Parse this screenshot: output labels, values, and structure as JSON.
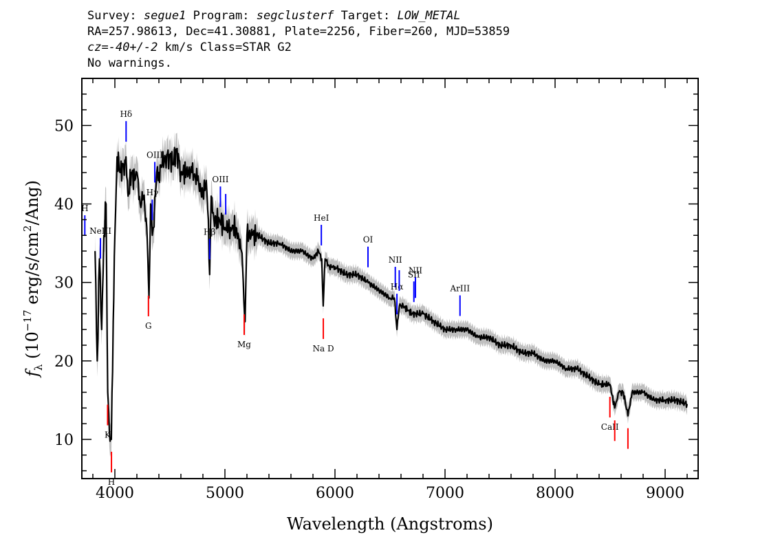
{
  "header": {
    "survey_label": "Survey:",
    "survey_value": "segue1",
    "program_label": "Program:",
    "program_value": "segclusterf",
    "target_label": "Target:",
    "target_value": "LOW_METAL",
    "line2": "RA=257.98613, Dec=41.30881, Plate=2256, Fiber=260, MJD=53859",
    "cz_label": "cz",
    "cz_value": "=-40+/-2",
    "cz_suffix": " km/s Class=STAR G2",
    "line4": "No warnings."
  },
  "chart_data": {
    "type": "line",
    "xlabel": "Wavelength (Angstroms)",
    "ylabel": "f_λ (10^-17 erg/s/cm^2/Ang)",
    "ylabel_parts": {
      "f": "f",
      "lambda": "λ",
      "open": " (10",
      "exp1": "−17",
      "mid": " erg/s/cm",
      "exp2": "2",
      "close": "/Ang)"
    },
    "xlim": [
      3700,
      9300
    ],
    "ylim": [
      5,
      56
    ],
    "xticks": [
      4000,
      5000,
      6000,
      7000,
      8000,
      9000
    ],
    "yticks": [
      10,
      20,
      30,
      40,
      50
    ],
    "colors": {
      "flux": "#000000",
      "error": "#bfbfbf",
      "emission": "#0000ff",
      "absorption": "#ff0000"
    },
    "series": [
      {
        "role": "flux",
        "x": [
          3820,
          3840,
          3860,
          3880,
          3900,
          3920,
          3935,
          3950,
          3968,
          3985,
          4000,
          4020,
          4050,
          4080,
          4101,
          4120,
          4150,
          4180,
          4200,
          4230,
          4260,
          4290,
          4300,
          4310,
          4325,
          4340,
          4350,
          4380,
          4400,
          4430,
          4460,
          4500,
          4530,
          4560,
          4600,
          4650,
          4700,
          4750,
          4800,
          4830,
          4850,
          4861,
          4875,
          4900,
          4950,
          5000,
          5050,
          5100,
          5150,
          5167,
          5183,
          5200,
          5250,
          5300,
          5400,
          5500,
          5600,
          5700,
          5800,
          5850,
          5880,
          5893,
          5910,
          5950,
          6000,
          6100,
          6200,
          6300,
          6400,
          6500,
          6540,
          6563,
          6585,
          6620,
          6700,
          6800,
          6900,
          7000,
          7100,
          7200,
          7300,
          7400,
          7500,
          7600,
          7700,
          7800,
          7900,
          8000,
          8100,
          8200,
          8300,
          8400,
          8498,
          8542,
          8580,
          8620,
          8662,
          8700,
          8800,
          8900,
          9000,
          9100,
          9200
        ],
        "y": [
          34,
          20,
          33,
          24,
          36,
          40,
          16,
          11,
          10,
          25,
          36,
          46,
          44,
          45,
          46,
          41,
          44,
          43,
          44,
          40,
          41,
          37,
          33,
          28,
          40,
          36,
          37,
          44,
          44,
          45,
          46,
          46,
          45,
          47,
          44,
          44,
          44,
          43,
          41,
          43,
          38,
          31,
          41,
          38,
          38,
          37,
          37,
          37,
          34,
          30,
          25,
          36,
          36,
          36,
          35,
          35,
          34,
          34,
          33,
          34,
          33,
          27,
          33,
          32,
          32,
          31,
          31,
          30,
          29,
          28,
          28,
          24,
          27,
          27,
          26,
          26,
          25,
          24,
          24,
          24,
          23,
          23,
          22,
          22,
          21,
          21,
          20,
          20,
          19,
          19,
          18,
          17,
          17,
          14,
          16,
          16,
          13,
          16,
          16,
          15,
          15,
          15,
          14.5
        ]
      }
    ],
    "line_markers": [
      {
        "label": "H",
        "wavelength": 3727,
        "kind": "emission"
      },
      {
        "label": "NeIII",
        "wavelength": 3869,
        "kind": "emission"
      },
      {
        "label": "Hδ",
        "wavelength": 4102,
        "kind": "emission"
      },
      {
        "label": "Hγ",
        "wavelength": 4340,
        "kind": "emission"
      },
      {
        "label": "OIII",
        "wavelength": 4363,
        "kind": "emission"
      },
      {
        "label": "Hβ",
        "wavelength": 4861,
        "kind": "emission"
      },
      {
        "label": "OIII",
        "wavelength": 4959,
        "kind": "emission"
      },
      {
        "label": "",
        "wavelength": 5007,
        "kind": "emission"
      },
      {
        "label": "HeI",
        "wavelength": 5876,
        "kind": "emission"
      },
      {
        "label": "OI",
        "wavelength": 6300,
        "kind": "emission"
      },
      {
        "label": "NII",
        "wavelength": 6548,
        "kind": "emission"
      },
      {
        "label": "Hα",
        "wavelength": 6563,
        "kind": "emission"
      },
      {
        "label": "",
        "wavelength": 6584,
        "kind": "emission"
      },
      {
        "label": "SII",
        "wavelength": 6717,
        "kind": "emission"
      },
      {
        "label": "NII",
        "wavelength": 6731,
        "kind": "emission"
      },
      {
        "label": "ArIII",
        "wavelength": 7136,
        "kind": "emission"
      },
      {
        "label": "K",
        "wavelength": 3934,
        "kind": "absorption"
      },
      {
        "label": "H",
        "wavelength": 3969,
        "kind": "absorption"
      },
      {
        "label": "G",
        "wavelength": 4305,
        "kind": "absorption"
      },
      {
        "label": "Mg",
        "wavelength": 5175,
        "kind": "absorption"
      },
      {
        "label": "Na D",
        "wavelength": 5894,
        "kind": "absorption"
      },
      {
        "label": "CaII",
        "wavelength": 8498,
        "kind": "absorption"
      },
      {
        "label": "",
        "wavelength": 8542,
        "kind": "absorption"
      },
      {
        "label": "",
        "wavelength": 8662,
        "kind": "absorption"
      }
    ]
  }
}
